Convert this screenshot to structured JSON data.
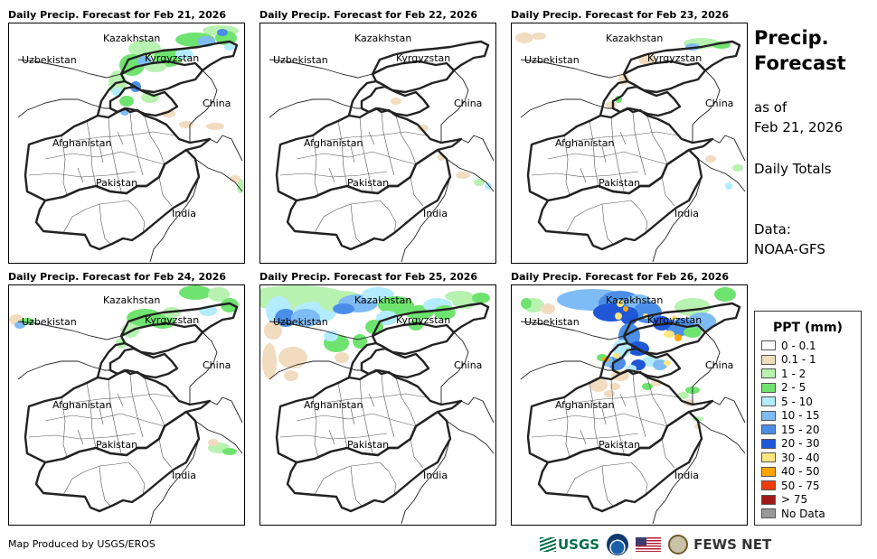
{
  "panels": [
    {
      "title": "Daily Precip. Forecast for Feb 21, 2026",
      "precip": "p21"
    },
    {
      "title": "Daily Precip. Forecast for Feb 22, 2026",
      "precip": "p22"
    },
    {
      "title": "Daily Precip. Forecast for Feb 23, 2026",
      "precip": "p23"
    },
    {
      "title": "Daily Precip. Forecast for Feb 24, 2026",
      "precip": "p24"
    },
    {
      "title": "Daily Precip. Forecast for Feb 25, 2026",
      "precip": "p25"
    },
    {
      "title": "Daily Precip. Forecast for Feb 26, 2026",
      "precip": "p26"
    }
  ],
  "map_labels": {
    "kazakhstan": "Kazakhstan",
    "uzbekistan": "Uzbekistan",
    "kyrgyzstan": "Kyrgyzstan",
    "china": "China",
    "afghanistan": "Afghanistan",
    "pakistan": "Pakistan",
    "india": "India"
  },
  "sidebar": {
    "title_line1": "Precip.",
    "title_line2": "Forecast",
    "as_of_label": "as of",
    "as_of_date": "Feb 21, 2026",
    "totals_label": "Daily Totals",
    "data_label": "Data:",
    "data_source": "NOAA-GFS"
  },
  "legend": {
    "title": "PPT (mm)",
    "items": [
      {
        "label": "0 - 0.1",
        "color": "#ffffff"
      },
      {
        "label": "0.1 - 1",
        "color": "#f2dcc0"
      },
      {
        "label": "1 - 2",
        "color": "#b8f2b0"
      },
      {
        "label": "2 - 5",
        "color": "#6fe36f"
      },
      {
        "label": "5 - 10",
        "color": "#b3ecff"
      },
      {
        "label": "10 - 15",
        "color": "#7fbcf5"
      },
      {
        "label": "15 - 20",
        "color": "#4b8ee8"
      },
      {
        "label": "20 - 30",
        "color": "#1f57d6"
      },
      {
        "label": "30 - 40",
        "color": "#ffe680"
      },
      {
        "label": "40 - 50",
        "color": "#ffa500"
      },
      {
        "label": "50 - 75",
        "color": "#f03c0a"
      },
      {
        "label": "> 75",
        "color": "#a01818"
      },
      {
        "label": "No Data",
        "color": "#999999"
      }
    ]
  },
  "footer": {
    "produced_by": "Map Produced by USGS/EROS"
  },
  "logos": {
    "usgs": "USGS",
    "fews": "FEWS NET"
  }
}
